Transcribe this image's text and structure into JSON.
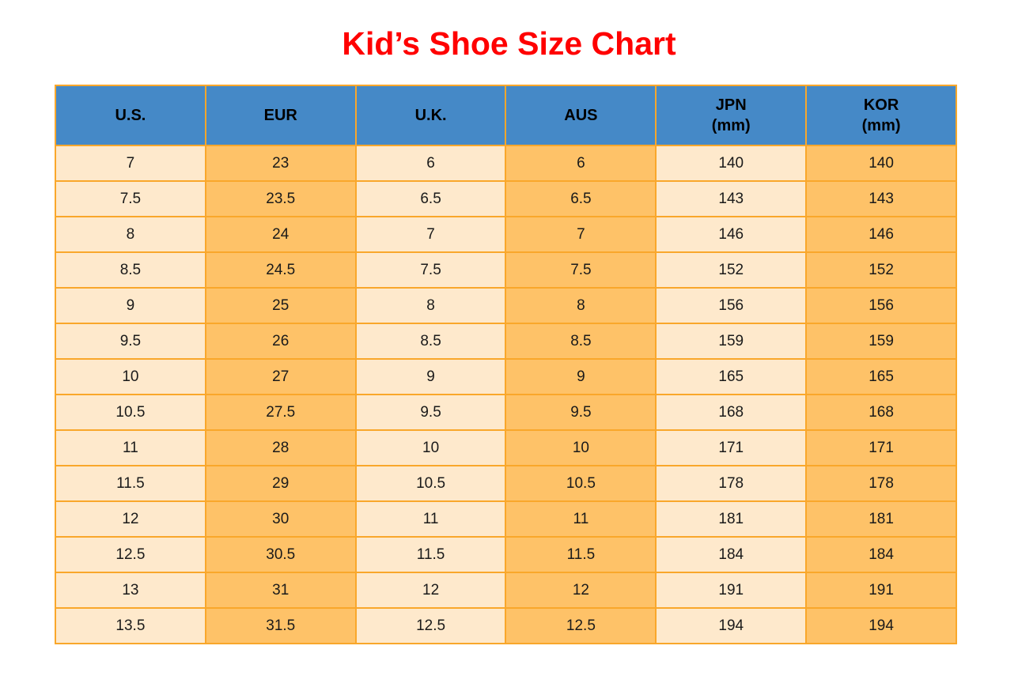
{
  "page": {
    "title": "Kid’s Shoe Size Chart"
  },
  "chart_data": {
    "type": "table",
    "title": "Kid’s Shoe Size Chart",
    "columns": [
      "U.S.",
      "EUR",
      "U.K.",
      "AUS",
      "JPN (mm)",
      "KOR (mm)"
    ],
    "header": [
      {
        "label": "U.S.",
        "sublabel": ""
      },
      {
        "label": "EUR",
        "sublabel": ""
      },
      {
        "label": "U.K.",
        "sublabel": ""
      },
      {
        "label": "AUS",
        "sublabel": ""
      },
      {
        "label": "JPN",
        "sublabel": "(mm)"
      },
      {
        "label": "KOR",
        "sublabel": "(mm)"
      }
    ],
    "rows": [
      [
        "7",
        "23",
        "6",
        "6",
        "140",
        "140"
      ],
      [
        "7.5",
        "23.5",
        "6.5",
        "6.5",
        "143",
        "143"
      ],
      [
        "8",
        "24",
        "7",
        "7",
        "146",
        "146"
      ],
      [
        "8.5",
        "24.5",
        "7.5",
        "7.5",
        "152",
        "152"
      ],
      [
        "9",
        "25",
        "8",
        "8",
        "156",
        "156"
      ],
      [
        "9.5",
        "26",
        "8.5",
        "8.5",
        "159",
        "159"
      ],
      [
        "10",
        "27",
        "9",
        "9",
        "165",
        "165"
      ],
      [
        "10.5",
        "27.5",
        "9.5",
        "9.5",
        "168",
        "168"
      ],
      [
        "11",
        "28",
        "10",
        "10",
        "171",
        "171"
      ],
      [
        "11.5",
        "29",
        "10.5",
        "10.5",
        "178",
        "178"
      ],
      [
        "12",
        "30",
        "11",
        "11",
        "181",
        "181"
      ],
      [
        "12.5",
        "30.5",
        "11.5",
        "11.5",
        "184",
        "184"
      ],
      [
        "13",
        "31",
        "12",
        "12",
        "191",
        "191"
      ],
      [
        "13.5",
        "31.5",
        "12.5",
        "12.5",
        "194",
        "194"
      ]
    ],
    "layout": {
      "grid": "all-borders",
      "column_fill_pattern": [
        "cream",
        "orange",
        "cream",
        "orange",
        "cream",
        "orange"
      ]
    }
  },
  "colors": {
    "title_red": "#FF0000",
    "header_blue": "#4589C7",
    "cell_cream": "#FEE9CC",
    "cell_orange": "#FEC268",
    "border_orange": "#F9A72B"
  }
}
